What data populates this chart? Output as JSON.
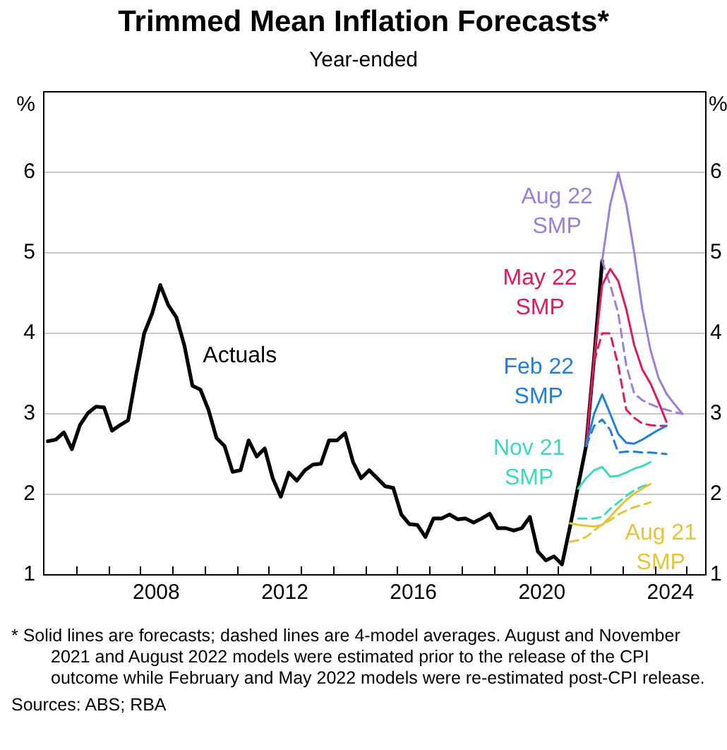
{
  "chart_data": {
    "type": "line",
    "title": "Trimmed Mean Inflation Forecasts*",
    "subtitle": "Year-ended",
    "ylabel": "%",
    "y2label": "%",
    "xlim": [
      2005,
      2025.6
    ],
    "xticks": [
      {
        "value": 2006,
        "label": null
      },
      {
        "value": 2007,
        "label": null
      },
      {
        "value": 2008,
        "label": null
      },
      {
        "value": 2008.5,
        "label": "2008"
      },
      {
        "value": 2009,
        "label": null
      },
      {
        "value": 2010,
        "label": null
      },
      {
        "value": 2011,
        "label": null
      },
      {
        "value": 2012,
        "label": null
      },
      {
        "value": 2012.5,
        "label": "2012"
      },
      {
        "value": 2013,
        "label": null
      },
      {
        "value": 2014,
        "label": null
      },
      {
        "value": 2015,
        "label": null
      },
      {
        "value": 2016,
        "label": null
      },
      {
        "value": 2016.5,
        "label": "2016"
      },
      {
        "value": 2017,
        "label": null
      },
      {
        "value": 2018,
        "label": null
      },
      {
        "value": 2019,
        "label": null
      },
      {
        "value": 2020,
        "label": null
      },
      {
        "value": 2020.5,
        "label": "2020"
      },
      {
        "value": 2021,
        "label": null
      },
      {
        "value": 2022,
        "label": null
      },
      {
        "value": 2023,
        "label": null
      },
      {
        "value": 2024,
        "label": null
      },
      {
        "value": 2024.5,
        "label": "2024"
      },
      {
        "value": 2025,
        "label": null
      }
    ],
    "ylim": [
      1,
      7
    ],
    "yticks": [
      1,
      2,
      3,
      4,
      5,
      6
    ],
    "y2lim": [
      1,
      7
    ],
    "y2ticks": [
      1,
      2,
      3,
      4,
      5,
      6
    ],
    "grid": "y",
    "legend": false,
    "marker": "none",
    "series": [
      {
        "name": "Actuals",
        "color": "#000000",
        "x": [
          2005.125,
          2005.375,
          2005.625,
          2005.875,
          2006.125,
          2006.375,
          2006.625,
          2006.875,
          2007.125,
          2007.375,
          2007.625,
          2007.875,
          2008.125,
          2008.375,
          2008.625,
          2008.875,
          2009.125,
          2009.375,
          2009.625,
          2009.875,
          2010.125,
          2010.375,
          2010.625,
          2010.875,
          2011.125,
          2011.375,
          2011.625,
          2011.875,
          2012.125,
          2012.375,
          2012.625,
          2012.875,
          2013.125,
          2013.375,
          2013.625,
          2013.875,
          2014.125,
          2014.375,
          2014.625,
          2014.875,
          2015.125,
          2015.375,
          2015.625,
          2015.875,
          2016.125,
          2016.375,
          2016.625,
          2016.875,
          2017.125,
          2017.375,
          2017.625,
          2017.875,
          2018.125,
          2018.375,
          2018.625,
          2018.875,
          2019.125,
          2019.375,
          2019.625,
          2019.875,
          2020.125,
          2020.375,
          2020.625,
          2020.875,
          2021.125,
          2021.375,
          2021.625,
          2021.875,
          2022.125,
          2022.375
        ],
        "values": [
          2.66,
          2.68,
          2.77,
          2.56,
          2.86,
          3.01,
          3.09,
          3.08,
          2.79,
          2.86,
          2.92,
          3.48,
          4.0,
          4.25,
          4.6,
          4.35,
          4.2,
          3.85,
          3.35,
          3.3,
          3.05,
          2.7,
          2.6,
          2.28,
          2.3,
          2.67,
          2.47,
          2.57,
          2.2,
          1.97,
          2.27,
          2.17,
          2.3,
          2.37,
          2.38,
          2.67,
          2.67,
          2.76,
          2.4,
          2.2,
          2.3,
          2.2,
          2.1,
          2.08,
          1.75,
          1.63,
          1.62,
          1.47,
          1.7,
          1.7,
          1.75,
          1.69,
          1.7,
          1.65,
          1.7,
          1.76,
          1.58,
          1.58,
          1.55,
          1.58,
          1.72,
          1.29,
          1.18,
          1.23,
          1.13,
          1.6,
          2.1,
          2.6,
          3.7,
          4.9
        ]
      },
      {
        "name": "Aug 22 SMP",
        "color": "#9b7fd8",
        "x": [
          2022.375,
          2022.625,
          2022.875,
          2023.125,
          2023.375,
          2023.625,
          2023.875,
          2024.125,
          2024.375,
          2024.625,
          2024.875
        ],
        "values": [
          4.9,
          5.6,
          6.0,
          5.6,
          5.0,
          4.3,
          3.8,
          3.45,
          3.25,
          3.12,
          3.0
        ]
      },
      {
        "color": "#9b7fd8",
        "line_style": "dashed",
        "x": [
          2022.375,
          2022.625,
          2022.875,
          2023.125,
          2023.375,
          2023.625,
          2023.875,
          2024.125,
          2024.375,
          2024.625,
          2024.875
        ],
        "values": [
          4.9,
          4.6,
          4.25,
          3.6,
          3.25,
          3.17,
          3.12,
          3.08,
          3.05,
          3.02,
          3.0
        ]
      },
      {
        "name": "May 22 SMP",
        "color": "#e0195a",
        "x": [
          2021.875,
          2022.125,
          2022.375,
          2022.625,
          2022.875,
          2023.125,
          2023.375,
          2023.625,
          2023.875,
          2024.125,
          2024.375
        ],
        "values": [
          2.6,
          3.7,
          4.6,
          4.8,
          4.65,
          4.3,
          3.85,
          3.55,
          3.38,
          3.15,
          2.9
        ]
      },
      {
        "color": "#e0195a",
        "line_style": "dashed",
        "x": [
          2021.875,
          2022.125,
          2022.375,
          2022.625,
          2022.875,
          2023.125,
          2023.375,
          2023.625,
          2023.875,
          2024.125,
          2024.375
        ],
        "values": [
          2.6,
          3.65,
          4.0,
          4.0,
          3.6,
          3.05,
          2.95,
          2.88,
          2.86,
          2.85,
          2.85
        ]
      },
      {
        "name": "Feb 22 SMP",
        "color": "#2080d8",
        "x": [
          2021.875,
          2022.125,
          2022.375,
          2022.625,
          2022.875,
          2023.125,
          2023.375,
          2023.625,
          2023.875,
          2024.125,
          2024.375
        ],
        "values": [
          2.6,
          3.0,
          3.24,
          3.0,
          2.75,
          2.64,
          2.63,
          2.68,
          2.74,
          2.8,
          2.85
        ]
      },
      {
        "color": "#2080d8",
        "line_style": "dashed",
        "x": [
          2021.875,
          2022.125,
          2022.375,
          2022.625,
          2022.875,
          2023.125,
          2023.375,
          2023.625,
          2023.875,
          2024.125,
          2024.375
        ],
        "values": [
          2.6,
          2.85,
          2.93,
          2.8,
          2.52,
          2.53,
          2.53,
          2.52,
          2.52,
          2.51,
          2.5
        ]
      },
      {
        "name": "Nov 21 SMP",
        "color": "#3cd8c0",
        "x": [
          2021.625,
          2021.875,
          2022.125,
          2022.375,
          2022.625,
          2022.875,
          2023.125,
          2023.375,
          2023.625,
          2023.875
        ],
        "values": [
          2.07,
          2.2,
          2.3,
          2.34,
          2.22,
          2.23,
          2.27,
          2.32,
          2.35,
          2.4
        ]
      },
      {
        "color": "#3cd8c0",
        "line_style": "dashed",
        "x": [
          2021.625,
          2021.875,
          2022.125,
          2022.375,
          2022.625,
          2022.875,
          2023.125,
          2023.375,
          2023.625,
          2023.875
        ],
        "values": [
          1.7,
          1.7,
          1.7,
          1.72,
          1.82,
          1.9,
          1.98,
          2.05,
          2.1,
          2.13
        ]
      },
      {
        "name": "Aug 21 SMP",
        "color": "#e3c53a",
        "x": [
          2021.375,
          2021.625,
          2021.875,
          2022.125,
          2022.375,
          2022.625,
          2022.875,
          2023.125,
          2023.375,
          2023.625,
          2023.875
        ],
        "values": [
          1.64,
          1.62,
          1.61,
          1.6,
          1.62,
          1.72,
          1.83,
          1.93,
          2.01,
          2.07,
          2.13
        ]
      },
      {
        "color": "#e3c53a",
        "line_style": "dashed",
        "x": [
          2021.375,
          2021.625,
          2021.875,
          2022.125,
          2022.375,
          2022.625,
          2022.875,
          2023.125,
          2023.375,
          2023.625,
          2023.875
        ],
        "values": [
          1.41,
          1.43,
          1.47,
          1.55,
          1.63,
          1.68,
          1.75,
          1.8,
          1.84,
          1.87,
          1.9
        ]
      }
    ],
    "annotations": [
      "* Solid lines are forecasts; dashed lines are 4-model averages. August and November 2021 and August 2022 models were estimated prior to the release of the CPI outcome while February and May 2022 models were re-estimated post-CPI release.",
      "Sources: ABS; RBA"
    ]
  }
}
